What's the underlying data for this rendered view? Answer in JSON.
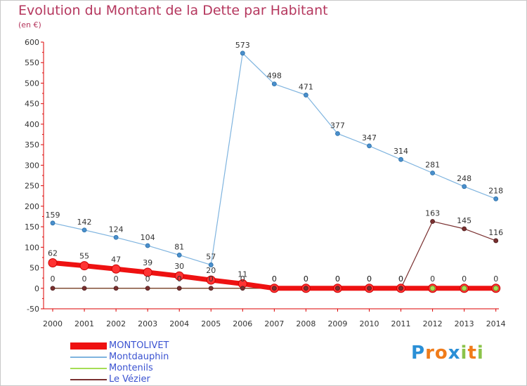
{
  "title": "Evolution du Montant de la Dette par Habitant",
  "subtitle": "(en €)",
  "colors": {
    "title": "#b5375e",
    "legend_text": "#3b53d1",
    "axis": "#dd0000",
    "label": "#333333"
  },
  "logo": {
    "text": "Proxiti",
    "letters": [
      {
        "ch": "P",
        "color": "#2a8fd6"
      },
      {
        "ch": "r",
        "color": "#f07c1a"
      },
      {
        "ch": "o",
        "color": "#f07c1a"
      },
      {
        "ch": "x",
        "color": "#2a8fd6"
      },
      {
        "ch": "i",
        "color": "#8bc34a"
      },
      {
        "ch": "t",
        "color": "#f07c1a"
      },
      {
        "ch": "i",
        "color": "#8bc34a"
      }
    ]
  },
  "chart_data": {
    "type": "line",
    "title": "Evolution du Montant de la Dette par Habitant",
    "subtitle": "(en €)",
    "xlabel": "",
    "ylabel": "",
    "ylim": [
      -50,
      600
    ],
    "yticks": [
      -50,
      0,
      50,
      100,
      150,
      200,
      250,
      300,
      350,
      400,
      450,
      500,
      550,
      600
    ],
    "x": [
      "2000",
      "2001",
      "2002",
      "2003",
      "2004",
      "2005",
      "2006",
      "2007",
      "2008",
      "2009",
      "2010",
      "2011",
      "2012",
      "2013",
      "2014"
    ],
    "grid": false,
    "legend_position": "bottom-left",
    "series": [
      {
        "name": "MONTOLIVET",
        "color": "#ee1111",
        "emphasis": true,
        "values": [
          62,
          55,
          47,
          39,
          30,
          20,
          11,
          0,
          0,
          0,
          0,
          0,
          0,
          0,
          0
        ],
        "labels": [
          "62",
          "55",
          "47",
          "39",
          "30",
          "20",
          "11",
          "0",
          "0",
          "0",
          "0",
          "0",
          "0",
          "0",
          "0"
        ]
      },
      {
        "name": "Montdauphin",
        "color": "#7fb4df",
        "emphasis": false,
        "values": [
          159,
          142,
          124,
          104,
          81,
          57,
          573,
          498,
          471,
          377,
          347,
          314,
          281,
          248,
          218
        ],
        "labels": [
          "159",
          "142",
          "124",
          "104",
          "81",
          "57",
          "573",
          "498",
          "471",
          "377",
          "347",
          "314",
          "281",
          "248",
          "218"
        ]
      },
      {
        "name": "Montenils",
        "color": "#a6dd55",
        "emphasis": false,
        "values": [
          0,
          0,
          0,
          0,
          0,
          0,
          0,
          0,
          0,
          0,
          0,
          0,
          0,
          0,
          0
        ],
        "labels": []
      },
      {
        "name": "Le Vézier",
        "color": "#7a3030",
        "emphasis": false,
        "values": [
          0,
          0,
          0,
          0,
          0,
          0,
          0,
          0,
          0,
          0,
          0,
          0,
          163,
          145,
          116
        ],
        "labels": [
          "0",
          "0",
          "0",
          "0",
          "0",
          "0",
          "0",
          "0",
          "0",
          "0",
          "0",
          "0",
          "163",
          "145",
          "116"
        ]
      }
    ]
  }
}
